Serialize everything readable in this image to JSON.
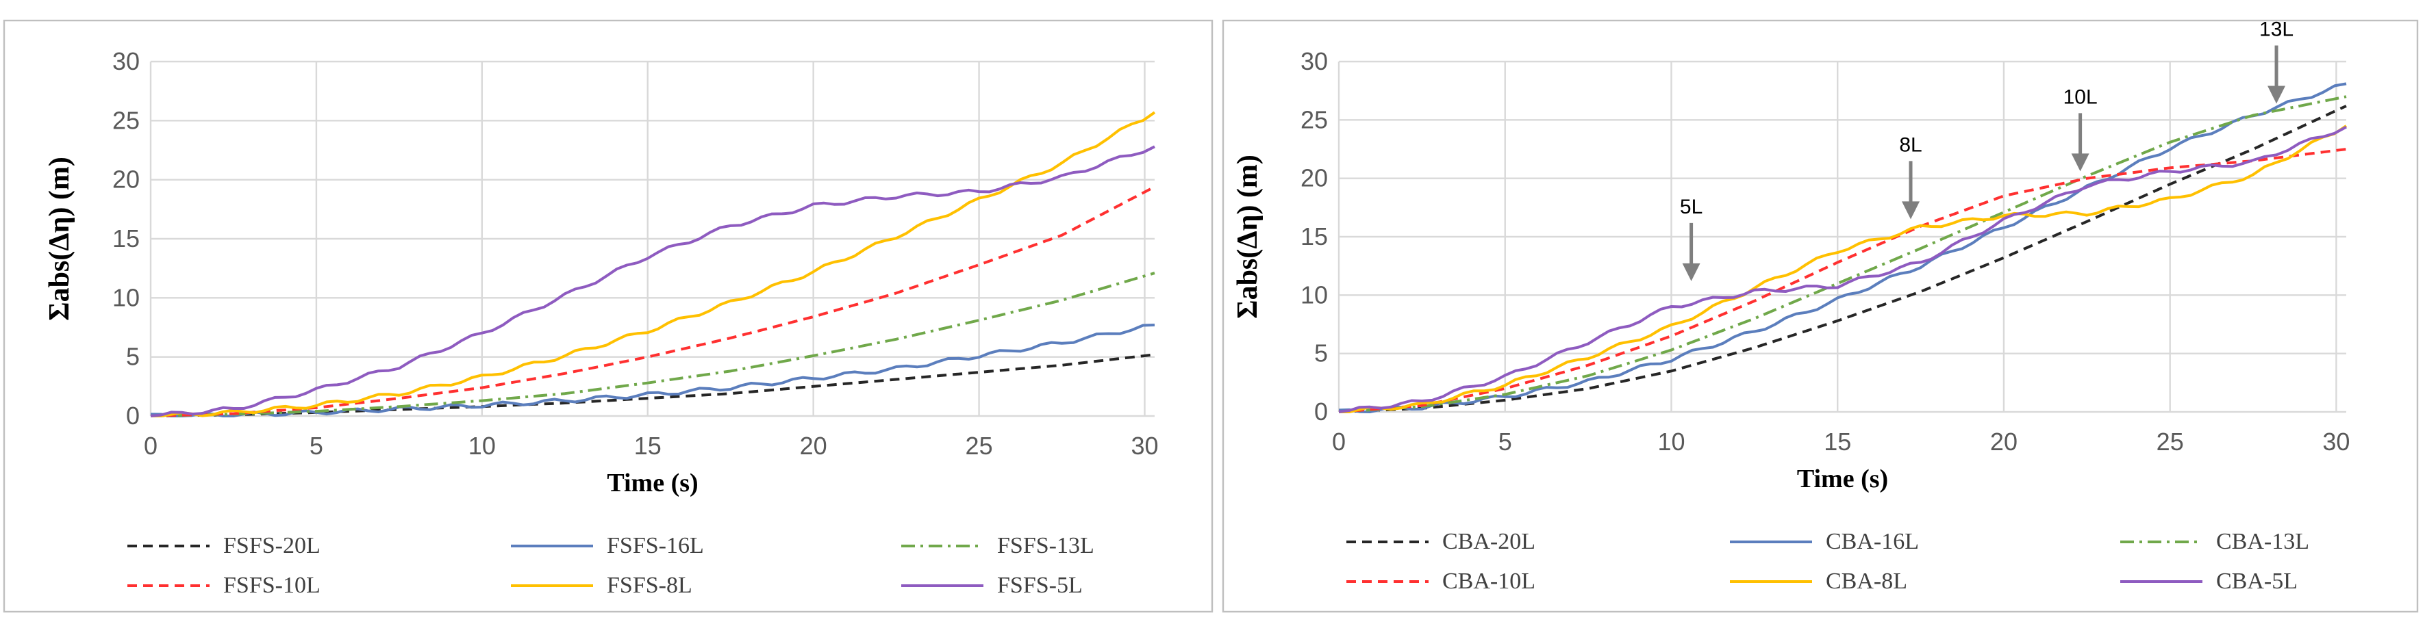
{
  "chart_data": [
    {
      "type": "line",
      "title": "",
      "xlabel": "Time (s)",
      "ylabel": "Σabs(Δη) (m)",
      "xlim": [
        0,
        30.3
      ],
      "ylim": [
        0,
        30
      ],
      "xticks": [
        0,
        5,
        10,
        15,
        20,
        25,
        30
      ],
      "yticks": [
        0,
        5,
        10,
        15,
        20,
        25,
        30
      ],
      "grid": true,
      "legend_position": "bottom",
      "x": [
        0,
        2.5,
        5,
        7.5,
        10,
        12.5,
        15,
        17.5,
        20,
        22.5,
        25,
        27.5,
        30.3
      ],
      "series": [
        {
          "name": "FSFS-20L",
          "color": "#262626",
          "dash": "dash",
          "values": [
            0,
            0.1,
            0.3,
            0.55,
            0.8,
            1.1,
            1.5,
            1.9,
            2.5,
            3.1,
            3.7,
            4.3,
            5.2
          ]
        },
        {
          "name": "FSFS-16L",
          "color": "#5b7ebd",
          "dash": "solid",
          "values": [
            0,
            0.1,
            0.3,
            0.6,
            0.9,
            1.3,
            1.8,
            2.4,
            3.2,
            4.0,
            5.1,
            6.2,
            7.7
          ]
        },
        {
          "name": "FSFS-13L",
          "color": "#70a84a",
          "dash": "dashdot",
          "values": [
            0,
            0.15,
            0.4,
            0.8,
            1.3,
            1.9,
            2.8,
            3.8,
            5.1,
            6.5,
            8.1,
            9.8,
            12.1
          ]
        },
        {
          "name": "FSFS-10L",
          "color": "#ff3030",
          "dash": "dash",
          "values": [
            0,
            0.2,
            0.7,
            1.5,
            2.4,
            3.6,
            5.0,
            6.6,
            8.4,
            10.4,
            12.8,
            15.3,
            19.4
          ]
        },
        {
          "name": "FSFS-8L",
          "color": "#ffc000",
          "dash": "solid",
          "values": [
            0,
            0.3,
            0.9,
            1.9,
            3.3,
            5.1,
            7.2,
            9.6,
            12.2,
            15.2,
            18.3,
            21.4,
            25.7
          ]
        },
        {
          "name": "FSFS-5L",
          "color": "#8e5bc0",
          "dash": "solid",
          "values": [
            0,
            0.6,
            2.2,
            4.2,
            7.0,
            10.2,
            13.5,
            16.1,
            17.8,
            18.6,
            19.0,
            20.2,
            22.8
          ]
        }
      ]
    },
    {
      "type": "line",
      "title": "",
      "xlabel": "Time (s)",
      "ylabel": "Σabs(Δη) (m)",
      "xlim": [
        0,
        30.3
      ],
      "ylim": [
        0,
        30
      ],
      "xticks": [
        0,
        5,
        10,
        15,
        20,
        25,
        30
      ],
      "yticks": [
        0,
        5,
        10,
        15,
        20,
        25,
        30
      ],
      "grid": true,
      "legend_position": "bottom",
      "x": [
        0,
        2.5,
        5,
        7.5,
        10,
        12.5,
        15,
        17.5,
        20,
        22.5,
        25,
        27.5,
        30.3
      ],
      "series": [
        {
          "name": "CBA-20L",
          "color": "#262626",
          "dash": "dash",
          "values": [
            0,
            0.3,
            1.0,
            2.0,
            3.5,
            5.5,
            7.8,
            10.3,
            13.2,
            16.3,
            19.5,
            22.5,
            26.2
          ]
        },
        {
          "name": "CBA-16L",
          "color": "#5b7ebd",
          "dash": "solid",
          "values": [
            0,
            0.4,
            1.3,
            2.6,
            4.5,
            6.9,
            9.6,
            12.5,
            15.8,
            19.2,
            22.6,
            25.4,
            28.1
          ]
        },
        {
          "name": "CBA-13L",
          "color": "#70a84a",
          "dash": "dashdot",
          "values": [
            0,
            0.45,
            1.5,
            3.1,
            5.3,
            8.0,
            11.0,
            14.0,
            17.1,
            20.2,
            23.1,
            25.4,
            27.0
          ]
        },
        {
          "name": "CBA-10L",
          "color": "#ff3030",
          "dash": "dash",
          "values": [
            0,
            0.55,
            2.0,
            4.0,
            6.5,
            9.5,
            12.8,
            15.9,
            18.5,
            20.0,
            20.9,
            21.5,
            22.5
          ]
        },
        {
          "name": "CBA-8L",
          "color": "#ffc000",
          "dash": "solid",
          "values": [
            0,
            0.6,
            2.3,
            4.7,
            7.3,
            10.6,
            13.8,
            15.8,
            16.8,
            17.0,
            18.2,
            20.3,
            24.5
          ]
        },
        {
          "name": "CBA-5L",
          "color": "#8e5bc0",
          "dash": "solid",
          "values": [
            0,
            0.9,
            3.0,
            6.0,
            9.0,
            10.3,
            10.8,
            12.8,
            16.4,
            19.4,
            20.6,
            21.4,
            24.4
          ]
        }
      ],
      "annotations": [
        {
          "label": "5L",
          "x": 10.6,
          "y": 11.2
        },
        {
          "label": "8L",
          "x": 17.2,
          "y": 16.5
        },
        {
          "label": "10L",
          "x": 22.3,
          "y": 20.6
        },
        {
          "label": "13L",
          "x": 28.2,
          "y": 26.4
        }
      ]
    }
  ]
}
